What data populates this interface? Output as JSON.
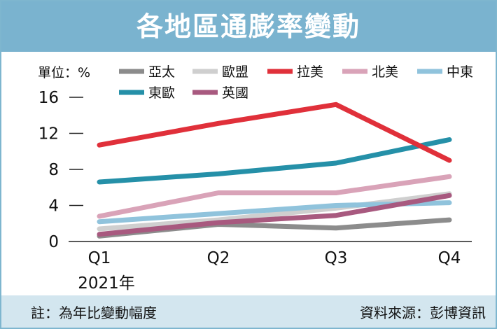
{
  "title": "各地區通膨率變動",
  "unit_label": "單位：%",
  "footer": {
    "note": "註：為年比變動幅度",
    "source": "資料來源：彭博資訊"
  },
  "chart_data": {
    "type": "line",
    "title": "各地區通膨率變動",
    "ylabel": "單位：%",
    "xlabel": "",
    "categories": [
      "Q1",
      "Q2",
      "Q3",
      "Q4"
    ],
    "year_label": "2021年",
    "ylim": [
      0,
      16
    ],
    "yticks": [
      0,
      4,
      8,
      12,
      16
    ],
    "series": [
      {
        "name": "亞太",
        "color": "#8c8c8c",
        "values": [
          0.6,
          1.9,
          1.5,
          2.4
        ]
      },
      {
        "name": "歐盟",
        "color": "#cfcfcf",
        "values": [
          1.4,
          2.4,
          3.7,
          5.3
        ]
      },
      {
        "name": "拉美",
        "color": "#e0303a",
        "values": [
          10.7,
          13.1,
          15.2,
          9.0
        ]
      },
      {
        "name": "北美",
        "color": "#d9a3b8",
        "values": [
          2.8,
          5.4,
          5.4,
          7.2
        ]
      },
      {
        "name": "中東",
        "color": "#90c3dc",
        "values": [
          2.2,
          3.1,
          4.0,
          4.3
        ]
      },
      {
        "name": "東歐",
        "color": "#2590a8",
        "values": [
          6.6,
          7.5,
          8.7,
          11.3
        ]
      },
      {
        "name": "英國",
        "color": "#a8597f",
        "values": [
          0.8,
          2.1,
          2.9,
          5.1
        ]
      }
    ]
  }
}
